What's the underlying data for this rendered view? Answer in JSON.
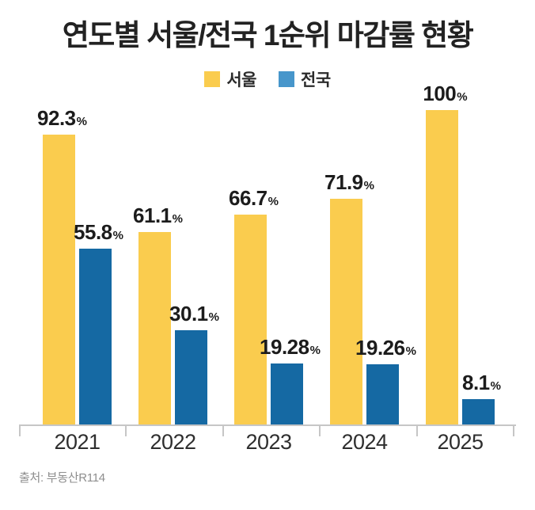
{
  "title": "연도별 서울/전국 1순위 마감률 현황",
  "source": "출처: 부동산R114",
  "legend": {
    "seoul_label": "서울",
    "national_label": "전국",
    "seoul_color": "#FACC4E",
    "national_color": "#4796CB"
  },
  "colors": {
    "seoul_bar": "#FACC4E",
    "national_bar": "#1569A3",
    "axis": "#C6C6C6",
    "value_text": "#1C1C1C"
  },
  "chart_data": {
    "type": "bar",
    "categories": [
      "2021",
      "2022",
      "2023",
      "2024",
      "2025"
    ],
    "series": [
      {
        "name": "서울",
        "color": "#FACC4E",
        "values": [
          92.3,
          61.1,
          66.7,
          71.9,
          100
        ],
        "labels": [
          "92.3",
          "61.1",
          "66.7",
          "71.9",
          "100"
        ]
      },
      {
        "name": "전국",
        "color": "#1569A3",
        "values": [
          55.8,
          30.1,
          19.28,
          19.26,
          8.1
        ],
        "labels": [
          "55.8",
          "30.1",
          "19.28",
          "19.26",
          "8.1"
        ]
      }
    ],
    "unit": "%",
    "title": "연도별 서울/전국 1순위 마감률 현황",
    "xlabel": "",
    "ylabel": "",
    "ylim": [
      0,
      100
    ],
    "grid": false,
    "legend_position": "top"
  }
}
